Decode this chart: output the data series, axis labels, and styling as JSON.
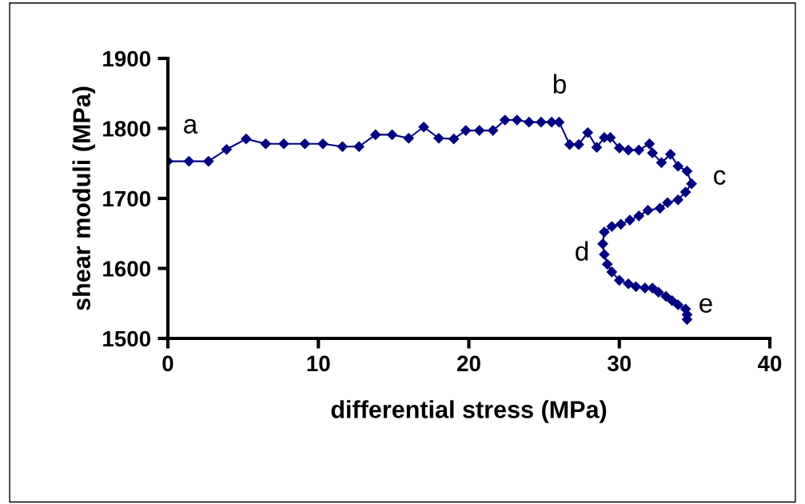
{
  "chart_data": {
    "type": "line",
    "xlabel": "differential stress (MPa)",
    "ylabel": "shear moduli (MPa)",
    "x": [
      0,
      1.4,
      2.7,
      3.9,
      5.2,
      6.5,
      7.7,
      9.1,
      10.3,
      11.6,
      12.7,
      13.8,
      14.9,
      16.0,
      17.0,
      18.0,
      19.0,
      19.8,
      20.7,
      21.6,
      22.4,
      23.2,
      24.0,
      24.8,
      25.5,
      26.0,
      26.7,
      27.3,
      27.9,
      28.5,
      29.0,
      29.4,
      30.0,
      30.6,
      31.3,
      32.0,
      32.2,
      32.8,
      33.4,
      33.9,
      34.5,
      34.8,
      34.4,
      33.9,
      33.2,
      32.7,
      31.9,
      31.3,
      30.7,
      30.1,
      29.5,
      29.0,
      28.9,
      29.0,
      29.2,
      29.5,
      30.0,
      30.6,
      31.1,
      31.7,
      32.2,
      32.6,
      33.1,
      33.5,
      33.9,
      34.4,
      34.5,
      34.5
    ],
    "series": [
      {
        "color": "#000080",
        "values": [
          1753,
          1753,
          1753,
          1770,
          1785,
          1778,
          1778,
          1778,
          1778,
          1774,
          1774,
          1791,
          1791,
          1786,
          1802,
          1786,
          1785,
          1797,
          1797,
          1797,
          1812,
          1812,
          1809,
          1809,
          1809,
          1809,
          1777,
          1777,
          1794,
          1773,
          1787,
          1787,
          1772,
          1769,
          1769,
          1778,
          1765,
          1751,
          1763,
          1746,
          1739,
          1721,
          1709,
          1698,
          1694,
          1686,
          1683,
          1675,
          1669,
          1663,
          1660,
          1652,
          1635,
          1620,
          1606,
          1595,
          1583,
          1578,
          1574,
          1572,
          1572,
          1566,
          1560,
          1554,
          1548,
          1542,
          1534,
          1527
        ]
      }
    ],
    "marker": "diamond",
    "line_style": "solid",
    "xlim": [
      0,
      40
    ],
    "xticks": [
      0,
      10,
      20,
      30,
      40
    ],
    "ylim": [
      1500,
      1900
    ],
    "yticks": [
      1500,
      1600,
      1700,
      1800,
      1900
    ],
    "grid": false,
    "legend": false,
    "annotations": [
      "a",
      "b",
      "c",
      "d",
      "e"
    ]
  }
}
